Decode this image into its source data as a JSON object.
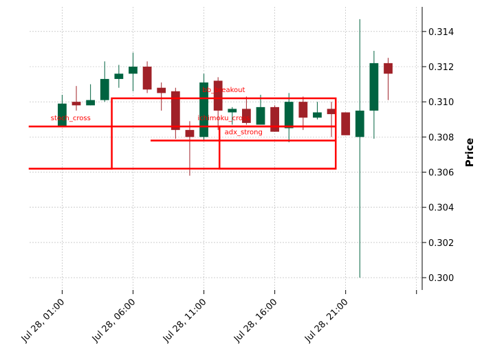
{
  "chart_data": {
    "type": "candlestick",
    "title": "",
    "xlabel": "",
    "ylabel": "Price",
    "ylim": [
      0.2993,
      0.3154
    ],
    "xlim": [
      -1.3,
      26.4
    ],
    "grid": true,
    "colors": {
      "up": "#006340",
      "down": "#A02128",
      "annotation": "#FF0000",
      "grid": "#B0B0B0"
    },
    "x_ticks": [
      {
        "index": 1,
        "label": "Jul 28, 01:00"
      },
      {
        "index": 6,
        "label": "Jul 28, 06:00"
      },
      {
        "index": 11,
        "label": "Jul 28, 11:00"
      },
      {
        "index": 16,
        "label": "Jul 28, 16:00"
      },
      {
        "index": 21,
        "label": "Jul 28, 21:00"
      },
      {
        "index": 26,
        "label": ""
      }
    ],
    "y_ticks": [
      {
        "value": 0.3,
        "label": "0.300"
      },
      {
        "value": 0.302,
        "label": "0.302"
      },
      {
        "value": 0.304,
        "label": "0.304"
      },
      {
        "value": 0.306,
        "label": "0.306"
      },
      {
        "value": 0.308,
        "label": "0.308"
      },
      {
        "value": 0.31,
        "label": "0.310"
      },
      {
        "value": 0.312,
        "label": "0.312"
      },
      {
        "value": 0.314,
        "label": "0.314"
      }
    ],
    "candles": [
      {
        "time": "Jul 28, 01:00",
        "open": 0.3086,
        "high": 0.3104,
        "low": 0.3086,
        "close": 0.3099
      },
      {
        "time": "Jul 28, 02:00",
        "open": 0.31,
        "high": 0.3109,
        "low": 0.3095,
        "close": 0.3098
      },
      {
        "time": "Jul 28, 03:00",
        "open": 0.3098,
        "high": 0.311,
        "low": 0.3098,
        "close": 0.3101
      },
      {
        "time": "Jul 28, 04:00",
        "open": 0.3101,
        "high": 0.3123,
        "low": 0.31,
        "close": 0.3113
      },
      {
        "time": "Jul 28, 05:00",
        "open": 0.3113,
        "high": 0.3121,
        "low": 0.3108,
        "close": 0.3116
      },
      {
        "time": "Jul 28, 06:00",
        "open": 0.3116,
        "high": 0.3128,
        "low": 0.3106,
        "close": 0.312
      },
      {
        "time": "Jul 28, 07:00",
        "open": 0.312,
        "high": 0.3123,
        "low": 0.3105,
        "close": 0.3107
      },
      {
        "time": "Jul 28, 08:00",
        "open": 0.3108,
        "high": 0.3111,
        "low": 0.3095,
        "close": 0.3105
      },
      {
        "time": "Jul 28, 09:00",
        "open": 0.3106,
        "high": 0.3108,
        "low": 0.3079,
        "close": 0.3084
      },
      {
        "time": "Jul 28, 10:00",
        "open": 0.3084,
        "high": 0.3089,
        "low": 0.3058,
        "close": 0.308
      },
      {
        "time": "Jul 28, 11:00",
        "open": 0.308,
        "high": 0.3116,
        "low": 0.3078,
        "close": 0.3111
      },
      {
        "time": "Jul 28, 12:00",
        "open": 0.3112,
        "high": 0.3114,
        "low": 0.3084,
        "close": 0.3095
      },
      {
        "time": "Jul 28, 13:00",
        "open": 0.3094,
        "high": 0.3097,
        "low": 0.3087,
        "close": 0.3096
      },
      {
        "time": "Jul 28, 14:00",
        "open": 0.3096,
        "high": 0.3103,
        "low": 0.3087,
        "close": 0.3088
      },
      {
        "time": "Jul 28, 15:00",
        "open": 0.3087,
        "high": 0.3104,
        "low": 0.3087,
        "close": 0.3097
      },
      {
        "time": "Jul 28, 16:00",
        "open": 0.3097,
        "high": 0.3098,
        "low": 0.3083,
        "close": 0.3083
      },
      {
        "time": "Jul 28, 17:00",
        "open": 0.3085,
        "high": 0.3105,
        "low": 0.3077,
        "close": 0.31
      },
      {
        "time": "Jul 28, 18:00",
        "open": 0.31,
        "high": 0.3103,
        "low": 0.3084,
        "close": 0.3091
      },
      {
        "time": "Jul 28, 19:00",
        "open": 0.3091,
        "high": 0.31,
        "low": 0.309,
        "close": 0.3094
      },
      {
        "time": "Jul 28, 20:00",
        "open": 0.3096,
        "high": 0.31,
        "low": 0.308,
        "close": 0.3093
      },
      {
        "time": "Jul 28, 21:00",
        "open": 0.3094,
        "high": 0.3094,
        "low": 0.3081,
        "close": 0.3081
      },
      {
        "time": "Jul 28, 22:00",
        "open": 0.308,
        "high": 0.3147,
        "low": 0.3,
        "close": 0.3095
      },
      {
        "time": "Jul 28, 23:00",
        "open": 0.3095,
        "high": 0.3129,
        "low": 0.3079,
        "close": 0.3122
      },
      {
        "time": "Jul 29, 00:00",
        "open": 0.3122,
        "high": 0.3125,
        "low": 0.3101,
        "close": 0.3116
      }
    ],
    "annotations": [
      {
        "label": "stoch_cross",
        "x0": -1.3,
        "x1": 4.5,
        "y0": 0.3086,
        "y1": 0.3086
      },
      {
        "label": "ichimoku_cross",
        "x0": 4.5,
        "x1": 20.3,
        "y0": 0.3086,
        "y1": 0.3086
      },
      {
        "label": "bb_breakout",
        "x0": 4.5,
        "x1": 20.3,
        "y0": 0.3062,
        "y1": 0.3102
      },
      {
        "label": "adx_strong",
        "x0": 7.3,
        "x1": 20.3,
        "y0": 0.3078,
        "y1": 0.3078
      },
      {
        "label": "",
        "x0": 12.1,
        "x1": 20.3,
        "y0": 0.3062,
        "y1": 0.3086
      },
      {
        "label": "",
        "x0": -1.3,
        "x1": 4.5,
        "y0": 0.3062,
        "y1": 0.3062
      }
    ]
  }
}
